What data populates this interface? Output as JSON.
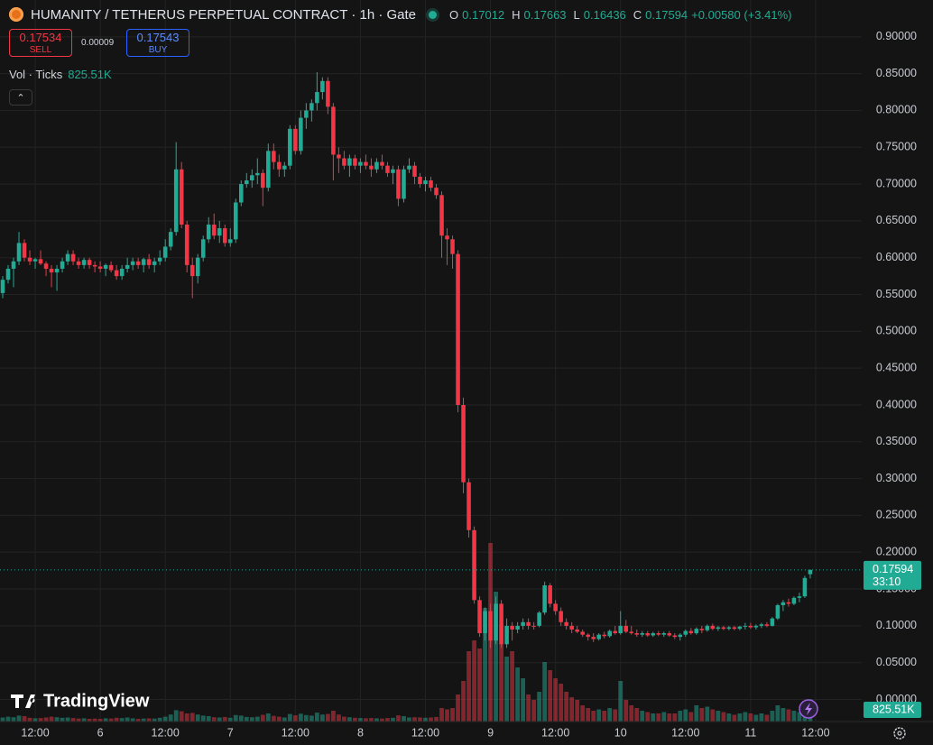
{
  "chart_data": {
    "type": "candlestick",
    "title": "HUMANITY / TETHERUS PERPETUAL CONTRACT · 1h · Gate",
    "ohlc_letters": [
      "O",
      "H",
      "L",
      "C"
    ],
    "change": "+0.00580 (+3.41%)",
    "countdown": "33:10",
    "order_panel": {
      "sell_price": 0.17534,
      "sell_label": "SELL",
      "spread": 9e-05,
      "buy_price": 0.17543,
      "buy_label": "BUY"
    },
    "volume_name": "Vol · Ticks",
    "volume_last_label": "825.51K",
    "watermark": "TradingView",
    "up_color": "#22ab94",
    "down_color": "#f23645",
    "grid": true,
    "ylim": [
      -0.03,
      0.95
    ],
    "vlim": [
      0,
      7000
    ],
    "xlim": [
      -0.5,
      158.5
    ],
    "yticks": [
      {
        "value": 0.9,
        "label": "0.90000"
      },
      {
        "value": 0.85,
        "label": "0.85000"
      },
      {
        "value": 0.8,
        "label": "0.80000"
      },
      {
        "value": 0.75,
        "label": "0.75000"
      },
      {
        "value": 0.7,
        "label": "0.70000"
      },
      {
        "value": 0.65,
        "label": "0.65000"
      },
      {
        "value": 0.6,
        "label": "0.60000"
      },
      {
        "value": 0.55,
        "label": "0.55000"
      },
      {
        "value": 0.5,
        "label": "0.50000"
      },
      {
        "value": 0.45,
        "label": "0.45000"
      },
      {
        "value": 0.4,
        "label": "0.40000"
      },
      {
        "value": 0.35,
        "label": "0.35000"
      },
      {
        "value": 0.3,
        "label": "0.30000"
      },
      {
        "value": 0.25,
        "label": "0.25000"
      },
      {
        "value": 0.2,
        "label": "0.20000"
      },
      {
        "value": 0.15,
        "label": "0.15000"
      },
      {
        "value": 0.1,
        "label": "0.10000"
      },
      {
        "value": 0.05,
        "label": "0.05000"
      },
      {
        "value": 0,
        "label": "0.00000"
      }
    ],
    "xticks": [
      {
        "value": 6,
        "label": "12:00"
      },
      {
        "value": 18,
        "label": "6"
      },
      {
        "value": 30,
        "label": "12:00"
      },
      {
        "value": 42,
        "label": "7"
      },
      {
        "value": 54,
        "label": "12:00"
      },
      {
        "value": 66,
        "label": "8"
      },
      {
        "value": 78,
        "label": "12:00"
      },
      {
        "value": 90,
        "label": "9"
      },
      {
        "value": 102,
        "label": "12:00"
      },
      {
        "value": 114,
        "label": "10"
      },
      {
        "value": 126,
        "label": "12:00"
      },
      {
        "value": 138,
        "label": "11"
      },
      {
        "value": 150,
        "label": "12:00"
      }
    ],
    "open": [
      0.552,
      0.57,
      0.585,
      0.595,
      0.62,
      0.6,
      0.595,
      0.598,
      0.592,
      0.585,
      0.58,
      0.585,
      0.595,
      0.605,
      0.595,
      0.59,
      0.597,
      0.59,
      0.588,
      0.585,
      0.59,
      0.583,
      0.575,
      0.585,
      0.59,
      0.595,
      0.59,
      0.598,
      0.59,
      0.595,
      0.6,
      0.615,
      0.635,
      0.72,
      0.645,
      0.59,
      0.575,
      0.6,
      0.625,
      0.645,
      0.63,
      0.64,
      0.62,
      0.625,
      0.675,
      0.7,
      0.705,
      0.712,
      0.715,
      0.695,
      0.745,
      0.73,
      0.72,
      0.725,
      0.775,
      0.745,
      0.79,
      0.8,
      0.81,
      0.825,
      0.84,
      0.805,
      0.74,
      0.735,
      0.725,
      0.735,
      0.725,
      0.73,
      0.725,
      0.72,
      0.73,
      0.725,
      0.715,
      0.72,
      0.68,
      0.72,
      0.725,
      0.71,
      0.7,
      0.705,
      0.695,
      0.685,
      0.63,
      0.625,
      0.605,
      0.4,
      0.295,
      0.23,
      0.135,
      0.09,
      0.12,
      0.08,
      0.13,
      0.075,
      0.1,
      0.095,
      0.1,
      0.105,
      0.1,
      0.1,
      0.118,
      0.155,
      0.13,
      0.12,
      0.105,
      0.1,
      0.095,
      0.092,
      0.088,
      0.085,
      0.082,
      0.088,
      0.086,
      0.093,
      0.09,
      0.1,
      0.092,
      0.09,
      0.088,
      0.09,
      0.087,
      0.09,
      0.088,
      0.09,
      0.087,
      0.085,
      0.088,
      0.093,
      0.09,
      0.096,
      0.094,
      0.1,
      0.096,
      0.098,
      0.096,
      0.098,
      0.096,
      0.099,
      0.1,
      0.098,
      0.1,
      0.102,
      0.1,
      0.11,
      0.128,
      0.132,
      0.13,
      0.138,
      0.14,
      0.17012
    ],
    "high": [
      0.575,
      0.59,
      0.6,
      0.635,
      0.625,
      0.61,
      0.6,
      0.61,
      0.595,
      0.59,
      0.59,
      0.6,
      0.61,
      0.61,
      0.6,
      0.6,
      0.6,
      0.595,
      0.595,
      0.592,
      0.595,
      0.59,
      0.59,
      0.6,
      0.6,
      0.6,
      0.6,
      0.605,
      0.6,
      0.61,
      0.625,
      0.64,
      0.757,
      0.73,
      0.65,
      0.6,
      0.605,
      0.63,
      0.655,
      0.66,
      0.65,
      0.645,
      0.64,
      0.68,
      0.705,
      0.715,
      0.72,
      0.735,
      0.72,
      0.755,
      0.755,
      0.74,
      0.73,
      0.78,
      0.78,
      0.8,
      0.81,
      0.815,
      0.852,
      0.845,
      0.845,
      0.81,
      0.75,
      0.745,
      0.74,
      0.74,
      0.735,
      0.74,
      0.735,
      0.735,
      0.74,
      0.73,
      0.725,
      0.725,
      0.725,
      0.735,
      0.73,
      0.715,
      0.71,
      0.71,
      0.7,
      0.69,
      0.64,
      0.63,
      0.61,
      0.41,
      0.3,
      0.235,
      0.14,
      0.125,
      0.13,
      0.14,
      0.135,
      0.11,
      0.105,
      0.105,
      0.11,
      0.11,
      0.105,
      0.12,
      0.16,
      0.158,
      0.135,
      0.125,
      0.11,
      0.105,
      0.1,
      0.095,
      0.09,
      0.09,
      0.09,
      0.092,
      0.095,
      0.1,
      0.12,
      0.108,
      0.1,
      0.095,
      0.093,
      0.093,
      0.092,
      0.093,
      0.092,
      0.093,
      0.09,
      0.09,
      0.095,
      0.097,
      0.098,
      0.1,
      0.102,
      0.103,
      0.1,
      0.1,
      0.1,
      0.1,
      0.1,
      0.104,
      0.104,
      0.102,
      0.104,
      0.105,
      0.112,
      0.13,
      0.135,
      0.137,
      0.14,
      0.145,
      0.168,
      0.17663
    ],
    "low": [
      0.545,
      0.565,
      0.56,
      0.59,
      0.595,
      0.59,
      0.585,
      0.59,
      0.575,
      0.56,
      0.555,
      0.58,
      0.59,
      0.59,
      0.585,
      0.585,
      0.585,
      0.58,
      0.58,
      0.575,
      0.58,
      0.57,
      0.57,
      0.58,
      0.583,
      0.585,
      0.58,
      0.585,
      0.58,
      0.59,
      0.595,
      0.61,
      0.63,
      0.64,
      0.58,
      0.545,
      0.565,
      0.595,
      0.62,
      0.625,
      0.62,
      0.615,
      0.615,
      0.62,
      0.67,
      0.695,
      0.695,
      0.7,
      0.67,
      0.69,
      0.72,
      0.71,
      0.71,
      0.72,
      0.74,
      0.74,
      0.775,
      0.785,
      0.8,
      0.815,
      0.795,
      0.705,
      0.715,
      0.72,
      0.71,
      0.72,
      0.715,
      0.72,
      0.71,
      0.715,
      0.72,
      0.71,
      0.7,
      0.67,
      0.675,
      0.715,
      0.7,
      0.695,
      0.69,
      0.69,
      0.68,
      0.6,
      0.59,
      0.585,
      0.39,
      0.28,
      0.22,
      0.13,
      0.085,
      0.08,
      0.07,
      0.075,
      0.07,
      0.07,
      0.08,
      0.09,
      0.095,
      0.095,
      0.095,
      0.098,
      0.115,
      0.125,
      0.115,
      0.1,
      0.095,
      0.09,
      0.09,
      0.085,
      0.08,
      0.078,
      0.08,
      0.083,
      0.084,
      0.088,
      0.088,
      0.09,
      0.088,
      0.085,
      0.085,
      0.085,
      0.085,
      0.086,
      0.085,
      0.085,
      0.082,
      0.08,
      0.085,
      0.088,
      0.088,
      0.09,
      0.092,
      0.094,
      0.093,
      0.094,
      0.094,
      0.094,
      0.094,
      0.095,
      0.096,
      0.095,
      0.097,
      0.098,
      0.099,
      0.108,
      0.12,
      0.126,
      0.128,
      0.132,
      0.138,
      0.16436
    ],
    "close": [
      0.57,
      0.585,
      0.595,
      0.62,
      0.6,
      0.595,
      0.598,
      0.592,
      0.585,
      0.58,
      0.585,
      0.595,
      0.605,
      0.595,
      0.59,
      0.597,
      0.59,
      0.588,
      0.585,
      0.59,
      0.583,
      0.575,
      0.585,
      0.59,
      0.595,
      0.59,
      0.598,
      0.59,
      0.595,
      0.6,
      0.615,
      0.635,
      0.72,
      0.645,
      0.59,
      0.575,
      0.6,
      0.625,
      0.645,
      0.63,
      0.64,
      0.62,
      0.625,
      0.675,
      0.7,
      0.705,
      0.712,
      0.715,
      0.695,
      0.745,
      0.73,
      0.72,
      0.725,
      0.775,
      0.745,
      0.79,
      0.8,
      0.81,
      0.825,
      0.84,
      0.805,
      0.74,
      0.735,
      0.725,
      0.735,
      0.725,
      0.73,
      0.725,
      0.72,
      0.73,
      0.725,
      0.715,
      0.72,
      0.68,
      0.72,
      0.725,
      0.71,
      0.7,
      0.705,
      0.695,
      0.685,
      0.63,
      0.625,
      0.605,
      0.4,
      0.295,
      0.23,
      0.135,
      0.09,
      0.12,
      0.08,
      0.13,
      0.075,
      0.1,
      0.095,
      0.1,
      0.105,
      0.1,
      0.099,
      0.118,
      0.155,
      0.13,
      0.12,
      0.105,
      0.1,
      0.095,
      0.092,
      0.088,
      0.085,
      0.082,
      0.088,
      0.086,
      0.093,
      0.09,
      0.1,
      0.092,
      0.09,
      0.088,
      0.09,
      0.087,
      0.09,
      0.088,
      0.09,
      0.087,
      0.085,
      0.088,
      0.093,
      0.09,
      0.096,
      0.094,
      0.1,
      0.096,
      0.098,
      0.096,
      0.098,
      0.096,
      0.099,
      0.1,
      0.098,
      0.1,
      0.102,
      0.1,
      0.11,
      0.128,
      0.132,
      0.13,
      0.138,
      0.14,
      0.165,
      0.17594
    ],
    "volume": [
      150,
      180,
      160,
      220,
      200,
      140,
      120,
      130,
      150,
      180,
      160,
      140,
      150,
      130,
      110,
      120,
      100,
      110,
      100,
      120,
      110,
      140,
      130,
      150,
      120,
      100,
      110,
      120,
      110,
      140,
      180,
      260,
      420,
      380,
      300,
      320,
      260,
      220,
      200,
      160,
      150,
      170,
      140,
      240,
      220,
      170,
      160,
      180,
      250,
      300,
      210,
      180,
      150,
      280,
      230,
      290,
      240,
      220,
      330,
      260,
      280,
      400,
      260,
      180,
      160,
      140,
      130,
      120,
      130,
      120,
      110,
      130,
      140,
      230,
      200,
      150,
      160,
      150,
      140,
      150,
      170,
      500,
      450,
      500,
      1000,
      1500,
      2600,
      3000,
      2700,
      4200,
      6600,
      4800,
      3600,
      2400,
      2600,
      2000,
      1600,
      1000,
      800,
      1100,
      2200,
      1900,
      1600,
      1400,
      1100,
      900,
      800,
      600,
      500,
      400,
      450,
      400,
      500,
      450,
      1500,
      800,
      600,
      500,
      400,
      350,
      300,
      300,
      350,
      300,
      300,
      400,
      450,
      350,
      600,
      500,
      550,
      450,
      400,
      350,
      300,
      250,
      300,
      350,
      300,
      250,
      300,
      250,
      400,
      600,
      500,
      450,
      400,
      350,
      700,
      825.51
    ]
  }
}
